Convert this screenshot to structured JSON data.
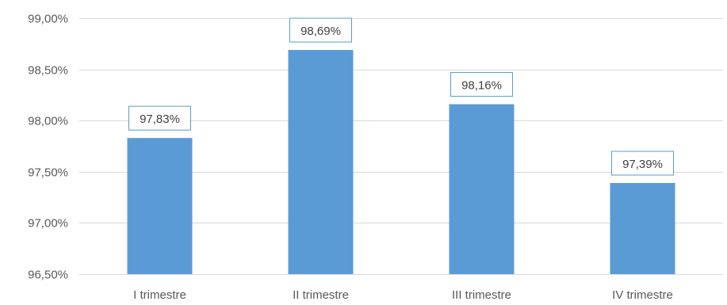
{
  "chart_data": {
    "type": "bar",
    "categories": [
      "I trimestre",
      "II trimestre",
      "III trimestre",
      "IV trimestre"
    ],
    "values": [
      97.83,
      98.69,
      98.16,
      97.39
    ],
    "value_labels": [
      "97,83%",
      "98,69%",
      "98,16%",
      "97,39%"
    ],
    "ylim": [
      96.5,
      99.0
    ],
    "yticks": [
      96.5,
      97.0,
      97.5,
      98.0,
      98.5,
      99.0
    ],
    "ytick_labels": [
      "96,50%",
      "97,00%",
      "97,50%",
      "98,00%",
      "98,50%",
      "99,00%"
    ],
    "grid": true,
    "legend": "none",
    "colors": {
      "bar": "#5b9bd5",
      "grid": "#d9d9d9",
      "label_border": "#5b9bd5"
    }
  }
}
